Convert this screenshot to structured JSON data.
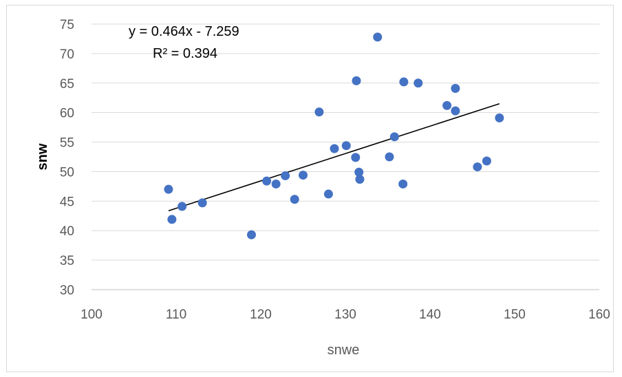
{
  "chart_data": {
    "type": "scatter",
    "title": "",
    "xlabel": "snwe",
    "ylabel": "snw",
    "xlim": [
      100,
      160
    ],
    "ylim": [
      30,
      75
    ],
    "x_ticks": [
      "100",
      "110",
      "120",
      "130",
      "140",
      "150",
      "160"
    ],
    "y_ticks": [
      "30",
      "35",
      "40",
      "45",
      "50",
      "55",
      "60",
      "65",
      "70",
      "75"
    ],
    "grid": "horizontal",
    "marker_color": "#4472c4",
    "points": [
      {
        "x": 109.1,
        "y": 47.0
      },
      {
        "x": 109.5,
        "y": 41.9
      },
      {
        "x": 110.7,
        "y": 44.1
      },
      {
        "x": 113.1,
        "y": 44.7
      },
      {
        "x": 118.9,
        "y": 39.3
      },
      {
        "x": 120.7,
        "y": 48.4
      },
      {
        "x": 121.8,
        "y": 47.9
      },
      {
        "x": 122.9,
        "y": 49.3
      },
      {
        "x": 124.0,
        "y": 45.3
      },
      {
        "x": 125.0,
        "y": 49.4
      },
      {
        "x": 126.9,
        "y": 60.1
      },
      {
        "x": 128.0,
        "y": 46.2
      },
      {
        "x": 128.7,
        "y": 53.9
      },
      {
        "x": 130.1,
        "y": 54.4
      },
      {
        "x": 131.2,
        "y": 52.4
      },
      {
        "x": 131.3,
        "y": 65.4
      },
      {
        "x": 131.6,
        "y": 49.9
      },
      {
        "x": 131.7,
        "y": 48.7
      },
      {
        "x": 133.8,
        "y": 72.8
      },
      {
        "x": 135.2,
        "y": 52.5
      },
      {
        "x": 135.8,
        "y": 55.9
      },
      {
        "x": 136.8,
        "y": 47.9
      },
      {
        "x": 136.9,
        "y": 65.2
      },
      {
        "x": 138.6,
        "y": 65.0
      },
      {
        "x": 142.0,
        "y": 61.2
      },
      {
        "x": 143.0,
        "y": 64.1
      },
      {
        "x": 143.0,
        "y": 60.3
      },
      {
        "x": 145.6,
        "y": 50.8
      },
      {
        "x": 146.7,
        "y": 51.8
      },
      {
        "x": 148.2,
        "y": 59.1
      }
    ],
    "trendline": {
      "equation": "y = 0.464x - 7.259",
      "r_squared": "R² = 0.394",
      "slope": 0.464,
      "intercept": -7.259,
      "x_range": [
        109.1,
        148.2
      ]
    }
  }
}
